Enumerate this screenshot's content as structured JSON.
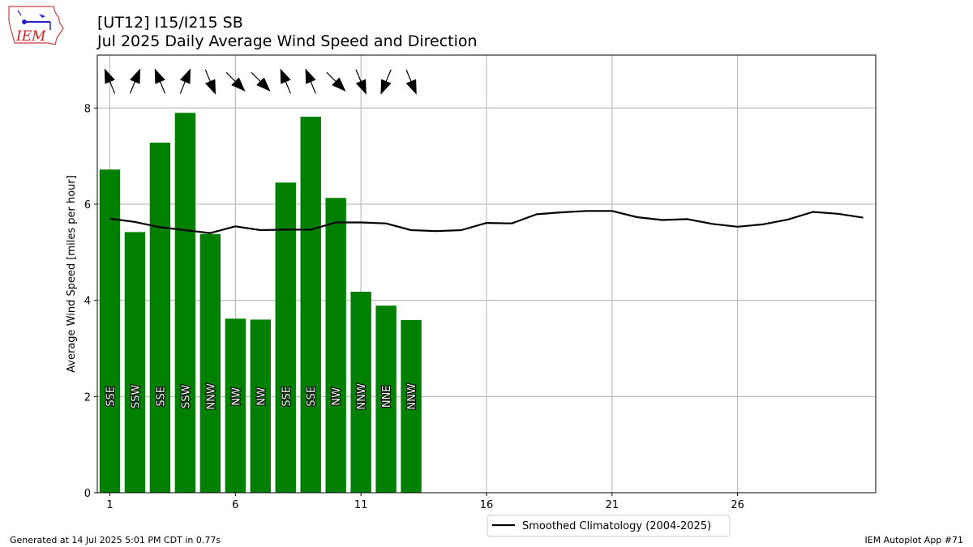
{
  "header": {
    "title_line1": "[UT12] I15/I215 SB",
    "title_line2": "Jul 2025 Daily Average Wind Speed and Direction"
  },
  "logo": {
    "text": "IEM",
    "icon": "iowa-state-logo-icon"
  },
  "footer": {
    "left": "Generated at 14 Jul 2025 5:01 PM CDT in 0.77s",
    "right": "IEM Autoplot App #71"
  },
  "colors": {
    "bar": "#008000",
    "line": "#000000",
    "grid": "#b0b0b0"
  },
  "chart_data": {
    "type": "bar",
    "ylabel": "Average Wind Speed [miles per hour]",
    "xlabel": "",
    "xlim": [
      0.5,
      31.5
    ],
    "ylim": [
      0,
      9.1
    ],
    "xticks": [
      1,
      6,
      11,
      16,
      21,
      26
    ],
    "yticks": [
      0,
      2,
      4,
      6,
      8
    ],
    "grid": true,
    "legend_placement": "bottom-center",
    "series": [
      {
        "type": "bar",
        "days": [
          1,
          2,
          3,
          4,
          5,
          6,
          7,
          8,
          9,
          10,
          11,
          12,
          13
        ],
        "values": [
          6.72,
          5.42,
          7.28,
          7.9,
          5.38,
          3.62,
          3.6,
          6.45,
          7.82,
          6.13,
          4.18,
          3.89,
          3.59
        ],
        "directions": [
          "SSE",
          "SSW",
          "SSE",
          "SSW",
          "NNW",
          "NW",
          "NW",
          "SSE",
          "SSE",
          "NW",
          "NNW",
          "NNE",
          "NNW"
        ],
        "direction_degrees": [
          157.5,
          202.5,
          157.5,
          202.5,
          337.5,
          315,
          315,
          157.5,
          157.5,
          315,
          337.5,
          22.5,
          337.5
        ]
      },
      {
        "type": "line",
        "name": "Smoothed Climatology (2004-2025)",
        "days": [
          1,
          2,
          3,
          4,
          5,
          6,
          7,
          8,
          9,
          10,
          11,
          12,
          13,
          14,
          15,
          16,
          17,
          18,
          19,
          20,
          21,
          22,
          23,
          24,
          25,
          26,
          27,
          28,
          29,
          30,
          31
        ],
        "values": [
          5.7,
          5.63,
          5.52,
          5.46,
          5.4,
          5.54,
          5.46,
          5.47,
          5.47,
          5.62,
          5.62,
          5.6,
          5.46,
          5.44,
          5.46,
          5.61,
          5.6,
          5.79,
          5.83,
          5.86,
          5.86,
          5.73,
          5.67,
          5.69,
          5.59,
          5.53,
          5.58,
          5.68,
          5.84,
          5.8,
          5.72
        ]
      }
    ]
  }
}
